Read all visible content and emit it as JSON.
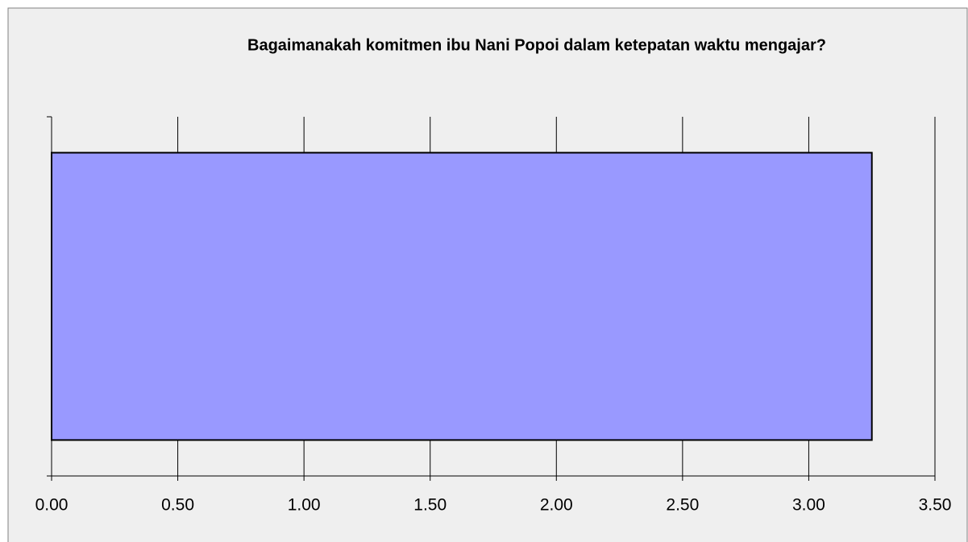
{
  "chart_data": {
    "type": "bar",
    "orientation": "horizontal",
    "title": "Bagaimanakah komitmen ibu Nani Popoi dalam ketepatan waktu mengajar?",
    "categories": [
      null
    ],
    "values": [
      3.25
    ],
    "color": "#9999ff",
    "xlim": [
      0,
      3.5
    ],
    "xticks": [
      {
        "value": 0,
        "label": "0.00"
      },
      {
        "value": 0.5,
        "label": "0.50"
      },
      {
        "value": 1,
        "label": "1.00"
      },
      {
        "value": 1.5,
        "label": "1.50"
      },
      {
        "value": 2,
        "label": "2.00"
      },
      {
        "value": 2.5,
        "label": "2.50"
      },
      {
        "value": 3,
        "label": "3.00"
      },
      {
        "value": 3.5,
        "label": "3.50"
      }
    ],
    "grid": true
  }
}
